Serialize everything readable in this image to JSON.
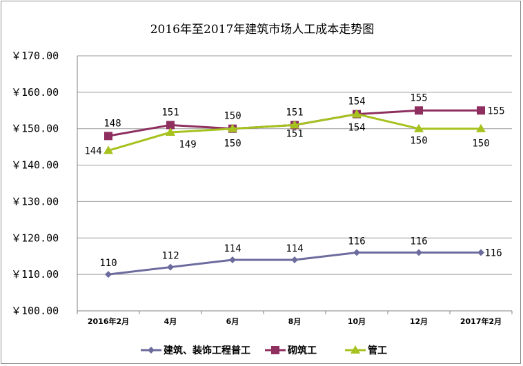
{
  "chart_data": {
    "type": "line",
    "title": "2016年至2017年建筑市场人工成本走势图",
    "categories": [
      "2016年2月",
      "4月",
      "6月",
      "8月",
      "10月",
      "12月",
      "2017年2月"
    ],
    "y_ticks": [
      "￥100.00",
      "￥110.00",
      "￥120.00",
      "￥130.00",
      "￥140.00",
      "￥150.00",
      "￥160.00",
      "￥170.00"
    ],
    "ylim": [
      100,
      170
    ],
    "grid": true,
    "legend_position": "bottom",
    "series": [
      {
        "name": "建筑、装饰工程普工",
        "color": "#6b6b9e",
        "marker": "diamond",
        "values": [
          110,
          112,
          114,
          114,
          116,
          116,
          116
        ],
        "labels": [
          "110",
          "112",
          "114",
          "114",
          "116",
          "116",
          "116"
        ]
      },
      {
        "name": "砌筑工",
        "color": "#8e2f5f",
        "marker": "square",
        "values": [
          148,
          151,
          150,
          151,
          154,
          155,
          155
        ],
        "labels": [
          "148",
          "151",
          "150",
          "151",
          "154",
          "155",
          "155"
        ]
      },
      {
        "name": "管工",
        "color": "#a6c21e",
        "marker": "triangle",
        "values": [
          144,
          149,
          150,
          151,
          154,
          150,
          150
        ],
        "labels": [
          "144",
          "149",
          "150",
          "151",
          "154",
          "150",
          "150"
        ]
      }
    ]
  }
}
